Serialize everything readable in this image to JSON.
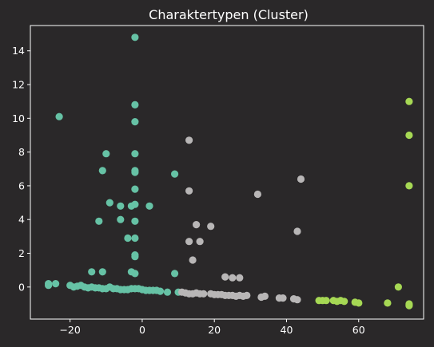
{
  "chart_data": {
    "type": "scatter",
    "title": "Charaktertypen (Cluster)",
    "xlabel": "",
    "ylabel": "",
    "xlim": [
      -31,
      78
    ],
    "ylim": [
      -1.9,
      15.5
    ],
    "xticks": [
      -20,
      0,
      20,
      40,
      60
    ],
    "yticks": [
      0,
      2,
      4,
      6,
      8,
      10,
      12,
      14
    ],
    "grid": false,
    "legend": "none",
    "colors": {
      "background": "#2a2829",
      "axes": "#ffffff",
      "text": "#ffffff"
    },
    "series": [
      {
        "color": "#66c2a5",
        "points": [
          [
            -2,
            14.8
          ],
          [
            -23,
            10.1
          ],
          [
            -2,
            10.8
          ],
          [
            -2,
            9.8
          ],
          [
            -10,
            7.9
          ],
          [
            -2,
            7.9
          ],
          [
            -11,
            6.9
          ],
          [
            -2,
            6.8
          ],
          [
            -2,
            6.9
          ],
          [
            9,
            6.7
          ],
          [
            -2,
            5.8
          ],
          [
            -9,
            5.0
          ],
          [
            -6,
            4.8
          ],
          [
            -3,
            4.8
          ],
          [
            -2,
            4.9
          ],
          [
            2,
            4.8
          ],
          [
            -12,
            3.9
          ],
          [
            -6,
            4.0
          ],
          [
            -2,
            3.9
          ],
          [
            -4,
            2.9
          ],
          [
            -2,
            2.9
          ],
          [
            -2,
            1.9
          ],
          [
            -2,
            1.8
          ],
          [
            -14,
            0.9
          ],
          [
            -11,
            0.9
          ],
          [
            -3,
            0.9
          ],
          [
            -2,
            0.8
          ],
          [
            9,
            0.8
          ],
          [
            -26,
            0.2
          ],
          [
            -26,
            0.1
          ],
          [
            -24,
            0.2
          ],
          [
            -20,
            0.1
          ],
          [
            -19,
            0.0
          ],
          [
            -18,
            0.05
          ],
          [
            -17,
            0.1
          ],
          [
            -16,
            0.0
          ],
          [
            -15,
            -0.05
          ],
          [
            -14,
            0.0
          ],
          [
            -13,
            -0.05
          ],
          [
            -12,
            -0.05
          ],
          [
            -11,
            -0.1
          ],
          [
            -10,
            -0.1
          ],
          [
            -9,
            0.0
          ],
          [
            -8,
            -0.1
          ],
          [
            -7,
            -0.1
          ],
          [
            -6,
            -0.15
          ],
          [
            -5,
            -0.15
          ],
          [
            -4,
            -0.15
          ],
          [
            -3,
            -0.1
          ],
          [
            -2,
            -0.1
          ],
          [
            -1,
            -0.1
          ],
          [
            0,
            -0.15
          ],
          [
            1,
            -0.2
          ],
          [
            2,
            -0.2
          ],
          [
            3,
            -0.2
          ],
          [
            4,
            -0.2
          ],
          [
            5,
            -0.25
          ],
          [
            7,
            -0.3
          ],
          [
            10,
            -0.3
          ]
        ]
      },
      {
        "color": "#b8b6b6",
        "points": [
          [
            13,
            8.7
          ],
          [
            13,
            5.7
          ],
          [
            32,
            5.5
          ],
          [
            44,
            6.4
          ],
          [
            15,
            3.7
          ],
          [
            19,
            3.6
          ],
          [
            43,
            3.3
          ],
          [
            13,
            2.7
          ],
          [
            16,
            2.7
          ],
          [
            14,
            1.6
          ],
          [
            23,
            0.6
          ],
          [
            25,
            0.55
          ],
          [
            27,
            0.55
          ],
          [
            11,
            -0.3
          ],
          [
            12,
            -0.35
          ],
          [
            13,
            -0.4
          ],
          [
            14,
            -0.4
          ],
          [
            15,
            -0.35
          ],
          [
            16,
            -0.4
          ],
          [
            17,
            -0.4
          ],
          [
            19,
            -0.4
          ],
          [
            20,
            -0.45
          ],
          [
            21,
            -0.45
          ],
          [
            22,
            -0.45
          ],
          [
            23,
            -0.5
          ],
          [
            24,
            -0.5
          ],
          [
            25,
            -0.5
          ],
          [
            26,
            -0.55
          ],
          [
            27,
            -0.5
          ],
          [
            28,
            -0.55
          ],
          [
            29,
            -0.5
          ],
          [
            33,
            -0.6
          ],
          [
            34,
            -0.55
          ],
          [
            38,
            -0.65
          ],
          [
            39,
            -0.65
          ],
          [
            42,
            -0.7
          ],
          [
            43,
            -0.75
          ]
        ]
      },
      {
        "color": "#a6d854",
        "points": [
          [
            74,
            11.0
          ],
          [
            74,
            9.0
          ],
          [
            74,
            6.0
          ],
          [
            71,
            0.0
          ],
          [
            49,
            -0.8
          ],
          [
            50,
            -0.8
          ],
          [
            51,
            -0.8
          ],
          [
            53,
            -0.8
          ],
          [
            54,
            -0.85
          ],
          [
            55,
            -0.8
          ],
          [
            56,
            -0.85
          ],
          [
            59,
            -0.9
          ],
          [
            60,
            -0.95
          ],
          [
            68,
            -0.95
          ],
          [
            74,
            -1.0
          ],
          [
            74,
            -1.1
          ]
        ]
      }
    ]
  }
}
